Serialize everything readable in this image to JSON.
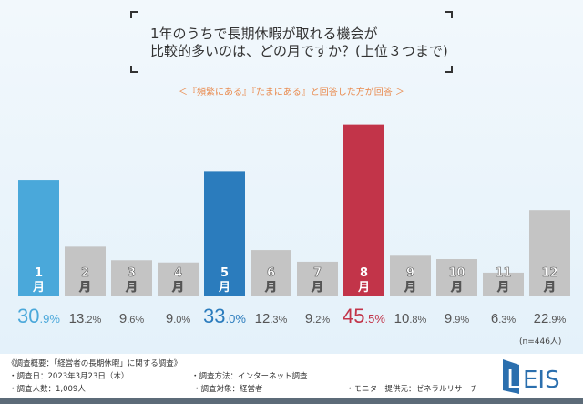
{
  "title_lines": [
    "1年のうちで長期休暇が取れる機会が",
    "比較的多いのは、どの月ですか？(上位３つまで)"
  ],
  "subtitle": "＜『頻繁にある』『たまにある』と回答した方が回答 ＞",
  "sample_note": "(n=446人)",
  "chart_data": {
    "type": "bar",
    "categories": [
      "1月",
      "2月",
      "3月",
      "4月",
      "5月",
      "6月",
      "7月",
      "8月",
      "9月",
      "10月",
      "11月",
      "12月"
    ],
    "values": [
      30.9,
      13.2,
      9.6,
      9.0,
      33.0,
      12.3,
      9.2,
      45.5,
      10.8,
      9.9,
      6.3,
      22.9
    ],
    "labels": [
      "30.9%",
      "13.2%",
      "9.6%",
      "9.0%",
      "33.0%",
      "12.3%",
      "9.2%",
      "45.5%",
      "10.8%",
      "9.9%",
      "6.3%",
      "22.9%"
    ],
    "unit": "%",
    "highlight": {
      "1月": "#4aa8da",
      "5月": "#2b7cbd",
      "8月": "#c23449"
    },
    "default_color": "#c4c4c4",
    "grid": false,
    "ylim": [
      0,
      50
    ]
  },
  "footer": {
    "overview": "《調査概要：「経営者の長期休暇」に関する調査》",
    "date": "・調査日：2023年3月23日（木）",
    "count": "・調査人数：1,009人",
    "method": "・調査方法：インターネット調査",
    "target": "・調査対象：経営者",
    "provider": "・モニター提供元：ゼネラルリサーチ"
  },
  "logo": "LEIS"
}
